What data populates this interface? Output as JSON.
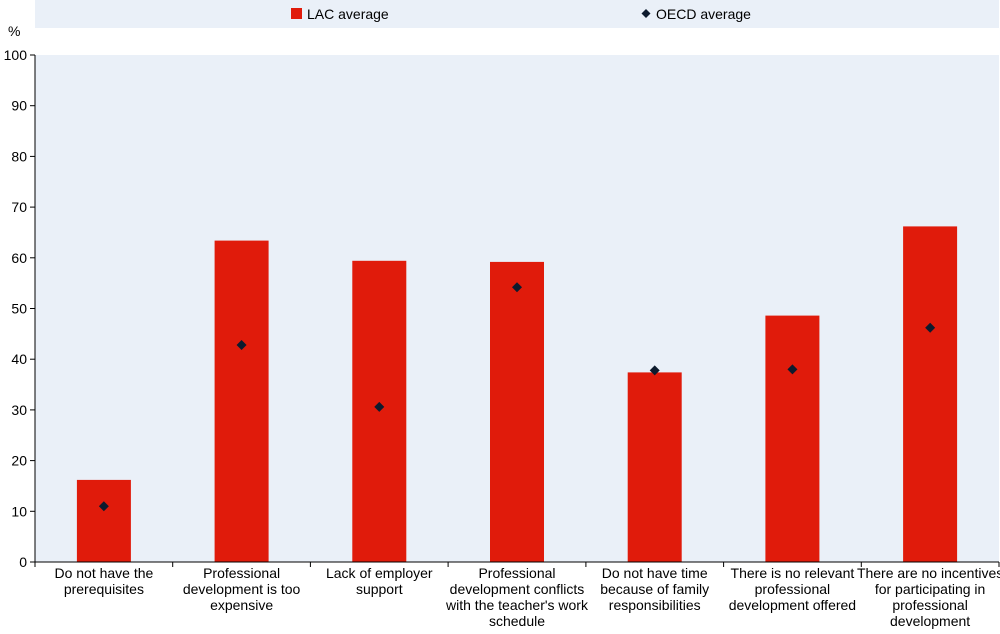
{
  "chart_data": {
    "type": "bar",
    "ylabel": "%",
    "ylim": [
      0,
      100
    ],
    "yticks": [
      0,
      10,
      20,
      30,
      40,
      50,
      60,
      70,
      80,
      90,
      100
    ],
    "grid": false,
    "legend_position": "top",
    "categories": [
      [
        "Do not have the",
        "prerequisites"
      ],
      [
        "Professional",
        "development is too",
        "expensive"
      ],
      [
        "Lack of employer",
        "support"
      ],
      [
        "Professional",
        "development conflicts",
        "with the teacher's work",
        "schedule"
      ],
      [
        "Do not have time",
        "because of family",
        "responsibilities"
      ],
      [
        "There is no relevant",
        "professional",
        "development offered"
      ],
      [
        "There are no incentives",
        "for participating in",
        "professional",
        "development"
      ]
    ],
    "series": [
      {
        "name": "LAC average",
        "kind": "bar",
        "color": "#e01b0b",
        "values": [
          16.2,
          63.4,
          59.4,
          59.2,
          37.4,
          48.6,
          66.2
        ]
      },
      {
        "name": "OECD average",
        "kind": "diamond",
        "color": "#0d1b2e",
        "values": [
          11.0,
          42.8,
          30.6,
          54.2,
          37.8,
          38.0,
          46.2
        ]
      }
    ],
    "plot_background": "#eaf0f8",
    "legend_background": "#eaf0f8"
  }
}
